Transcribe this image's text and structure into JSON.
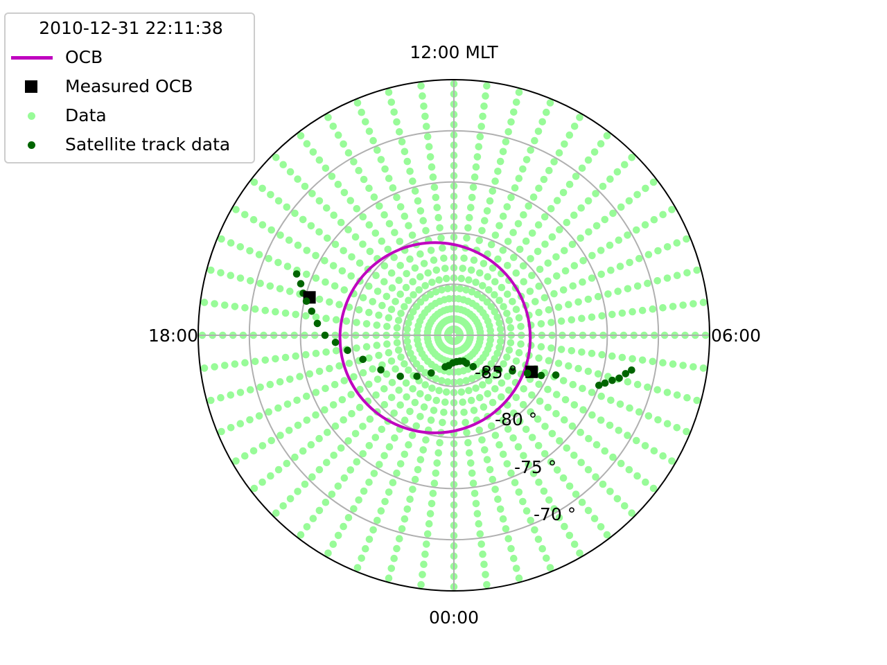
{
  "chart_data": {
    "type": "scatter",
    "projection": "polar",
    "title": "2010-12-31 22:11:38",
    "direction_labels": {
      "top": "12:00 MLT",
      "right": "06:00",
      "bottom": "00:00",
      "left": "18:00"
    },
    "lat_rings": [
      {
        "lat": -85,
        "label": "-85 °"
      },
      {
        "lat": -80,
        "label": "-80 °"
      },
      {
        "lat": -75,
        "label": "-75 °"
      },
      {
        "lat": -70,
        "label": "-70 °"
      }
    ],
    "rlim_colat_deg": [
      0,
      25
    ],
    "grid": true,
    "legend": {
      "placement": "top-left",
      "entries": [
        {
          "label": "OCB",
          "kind": "line",
          "color": "#bf00bf"
        },
        {
          "label": "Measured OCB",
          "kind": "square",
          "color": "#000000"
        },
        {
          "label": "Data",
          "kind": "dot",
          "color": "#98fb98"
        },
        {
          "label": "Satellite track data",
          "kind": "dot",
          "color": "#006400"
        }
      ]
    },
    "series": [
      {
        "name": "OCB",
        "kind": "circle",
        "color": "#bf00bf",
        "boundary_lat": -80.7,
        "center_offset_colat_deg": 1.85,
        "center_offset_mlt": 18.5
      },
      {
        "name": "Measured OCB",
        "kind": "points",
        "color": "#000000",
        "points": [
          {
            "mlt": 4.32,
            "lat": -81.6
          },
          {
            "mlt": 17.02,
            "lat": -75.4
          }
        ]
      },
      {
        "name": "Data",
        "kind": "grid",
        "color": "#98fb98",
        "mlt_step_h": 0.5,
        "lat_min": -89.4,
        "lat_max": -64.4,
        "lat_step": 1.0
      },
      {
        "name": "Satellite track data",
        "kind": "track",
        "color": "#006400",
        "points": [
          {
            "mlt": 5.26,
            "lat": -72.3
          },
          {
            "mlt": 5.16,
            "lat": -72.8
          },
          {
            "mlt": 5.03,
            "lat": -73.3
          },
          {
            "mlt": 4.94,
            "lat": -73.9
          },
          {
            "mlt": 4.83,
            "lat": -74.5
          },
          {
            "mlt": 4.73,
            "lat": -75.0
          },
          {
            "mlt": 4.58,
            "lat": -79.3
          },
          {
            "mlt": 4.35,
            "lat": -80.6
          },
          {
            "mlt": 4.18,
            "lat": -81.9
          },
          {
            "mlt": 3.91,
            "lat": -83.3
          },
          {
            "mlt": 3.49,
            "lat": -84.5
          },
          {
            "mlt": 2.73,
            "lat": -85.3
          },
          {
            "mlt": 2.1,
            "lat": -86.4
          },
          {
            "mlt": 1.62,
            "lat": -87.0
          },
          {
            "mlt": 1.36,
            "lat": -87.3
          },
          {
            "mlt": 0.86,
            "lat": -87.4
          },
          {
            "mlt": 0.38,
            "lat": -87.4
          },
          {
            "mlt": 23.87,
            "lat": -87.3
          },
          {
            "mlt": 23.37,
            "lat": -87.0
          },
          {
            "mlt": 22.98,
            "lat": -86.8
          },
          {
            "mlt": 21.93,
            "lat": -85.7
          },
          {
            "mlt": 21.2,
            "lat": -84.6
          },
          {
            "mlt": 20.5,
            "lat": -83.4
          },
          {
            "mlt": 19.69,
            "lat": -82.1
          },
          {
            "mlt": 18.99,
            "lat": -80.8
          },
          {
            "mlt": 18.54,
            "lat": -79.5
          },
          {
            "mlt": 18.23,
            "lat": -78.4
          },
          {
            "mlt": 18.0,
            "lat": -77.4
          },
          {
            "mlt": 17.67,
            "lat": -76.6
          },
          {
            "mlt": 17.36,
            "lat": -75.9
          },
          {
            "mlt": 17.13,
            "lat": -75.2
          },
          {
            "mlt": 16.96,
            "lat": -74.7
          },
          {
            "mlt": 16.76,
            "lat": -74.2
          },
          {
            "mlt": 16.58,
            "lat": -73.5
          }
        ]
      }
    ]
  }
}
